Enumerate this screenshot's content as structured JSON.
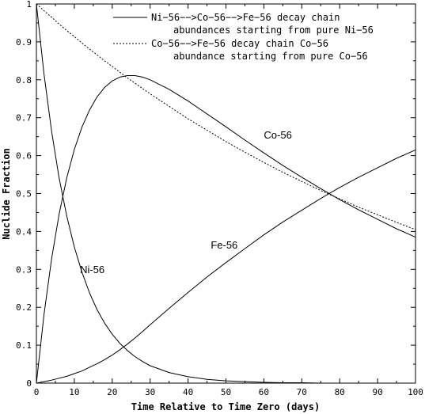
{
  "chart_data": {
    "type": "line",
    "xlabel": "Time Relative to Time Zero (days)",
    "ylabel": "Nuclide Fraction",
    "xlim": [
      0,
      100
    ],
    "ylim": [
      0,
      1
    ],
    "x_ticks": [
      "0",
      "10",
      "20",
      "30",
      "40",
      "50",
      "60",
      "70",
      "80",
      "90",
      "100"
    ],
    "y_ticks": [
      "0",
      "0.1",
      "0.2",
      "0.3",
      "0.4",
      "0.5",
      "0.6",
      "0.7",
      "0.8",
      "0.9",
      "1"
    ],
    "grid": false,
    "legend_position": "top-right",
    "legend": [
      {
        "line1": "Ni−56−−>Co−56−−>Fe−56 decay chain",
        "line2": "abundances starting from pure Ni−56",
        "style": "solid"
      },
      {
        "line1": "Co−56−−>Fe−56 decay chain Co−56",
        "line2": "abundance starting from pure Co−56",
        "style": "dotted"
      }
    ],
    "annotations": [
      {
        "text": "Ni-56",
        "x": 11.5,
        "y": 0.29
      },
      {
        "text": "Co-56",
        "x": 60,
        "y": 0.645
      },
      {
        "text": "Fe-56",
        "x": 46,
        "y": 0.355
      }
    ],
    "x": [
      0,
      2,
      4,
      6,
      8,
      10,
      12,
      14,
      16,
      18,
      20,
      22,
      24,
      26,
      28,
      30,
      35,
      40,
      45,
      50,
      55,
      60,
      65,
      70,
      75,
      80,
      85,
      90,
      95,
      100
    ],
    "series": [
      {
        "name": "Ni-56",
        "style": "solid",
        "values": [
          1.0,
          0.815,
          0.664,
          0.541,
          0.441,
          0.359,
          0.293,
          0.238,
          0.194,
          0.158,
          0.129,
          0.105,
          0.086,
          0.07,
          0.057,
          0.046,
          0.028,
          0.017,
          0.01,
          0.006,
          0.004,
          0.002,
          0.001,
          0.001,
          0.0,
          0.0,
          0.0,
          0.0,
          0.0,
          0.0
        ]
      },
      {
        "name": "Co-56",
        "style": "solid",
        "values": [
          0.0,
          0.181,
          0.328,
          0.446,
          0.541,
          0.616,
          0.675,
          0.72,
          0.755,
          0.78,
          0.797,
          0.807,
          0.811,
          0.811,
          0.807,
          0.8,
          0.775,
          0.744,
          0.71,
          0.676,
          0.641,
          0.607,
          0.574,
          0.543,
          0.513,
          0.484,
          0.457,
          0.432,
          0.407,
          0.385
        ]
      },
      {
        "name": "Fe-56",
        "style": "solid",
        "values": [
          0.0,
          0.004,
          0.008,
          0.013,
          0.018,
          0.025,
          0.032,
          0.042,
          0.051,
          0.062,
          0.074,
          0.088,
          0.103,
          0.119,
          0.136,
          0.154,
          0.197,
          0.239,
          0.28,
          0.318,
          0.355,
          0.391,
          0.425,
          0.456,
          0.487,
          0.516,
          0.543,
          0.568,
          0.593,
          0.615
        ]
      },
      {
        "name": "Co-56 (pure Co-56 start)",
        "style": "dotted",
        "values": [
          1.0,
          0.982,
          0.965,
          0.947,
          0.93,
          0.914,
          0.897,
          0.881,
          0.866,
          0.85,
          0.835,
          0.82,
          0.805,
          0.791,
          0.777,
          0.763,
          0.73,
          0.697,
          0.667,
          0.637,
          0.609,
          0.582,
          0.556,
          0.532,
          0.508,
          0.486,
          0.464,
          0.444,
          0.424,
          0.405
        ]
      }
    ]
  }
}
